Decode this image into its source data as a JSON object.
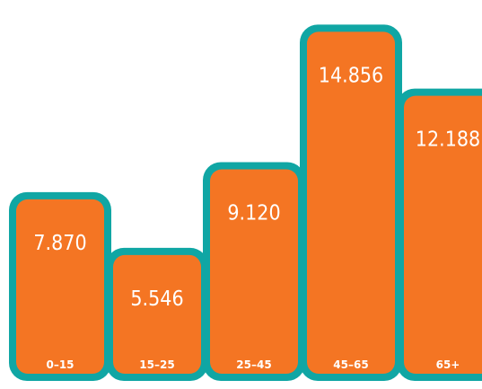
{
  "chart_data": {
    "type": "bar",
    "categories": [
      "0–15",
      "15–25",
      "25–45",
      "45–65",
      "65+"
    ],
    "values": [
      7870,
      5546,
      9120,
      14856,
      12188
    ],
    "value_labels": [
      "7.870",
      "5.546",
      "9.120",
      "14.856",
      "12.188"
    ],
    "title": "",
    "xlabel": "",
    "ylabel": "",
    "grid": false,
    "legend": "none"
  },
  "colors": {
    "bar_fill": "#f47523",
    "bar_border": "#10a6a4",
    "label_text": "#ffffff",
    "background": "#ffffff"
  }
}
